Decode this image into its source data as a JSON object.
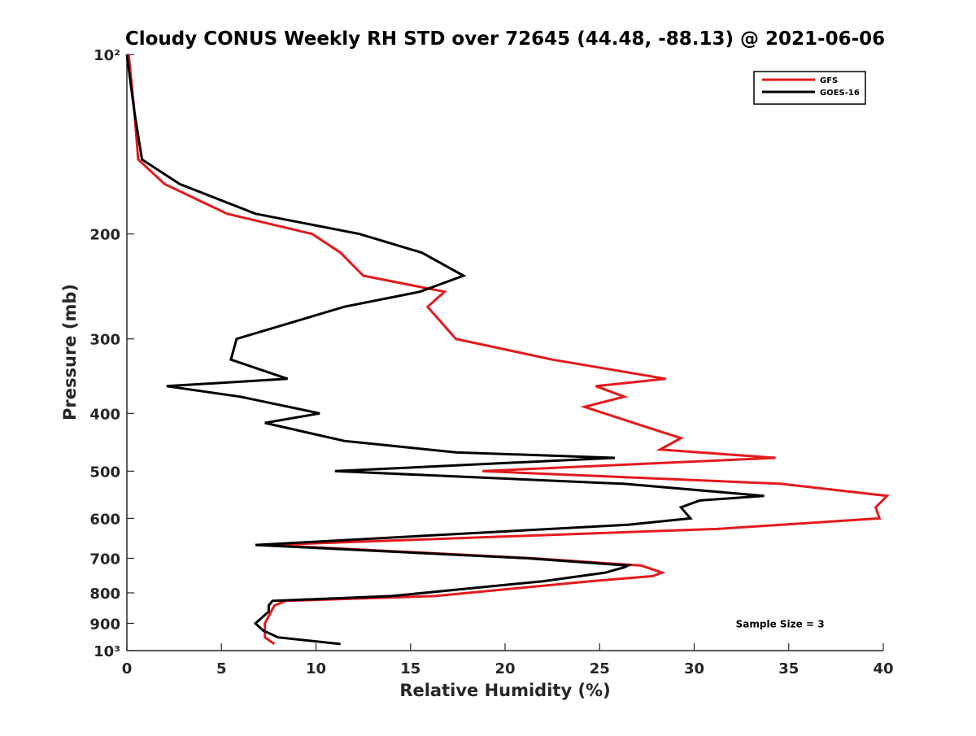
{
  "chart_data": {
    "type": "line",
    "title": "Cloudy CONUS Weekly RH STD over 72645 (44.48, -88.13) @ 2021-06-06",
    "xlabel": "Relative Humidity (%)",
    "ylabel": "Pressure (mb)",
    "xlim": [
      0,
      40
    ],
    "ylim": [
      100,
      1000
    ],
    "y_scale": "log",
    "y_reversed": true,
    "grid": false,
    "legend_position": "top-right",
    "x_ticks": [
      0,
      5,
      10,
      15,
      20,
      25,
      30,
      35,
      40
    ],
    "x_tick_labels": [
      "0",
      "5",
      "10",
      "15",
      "20",
      "25",
      "30",
      "35",
      "40"
    ],
    "y_ticks": [
      100,
      200,
      300,
      400,
      500,
      600,
      700,
      800,
      900,
      1000
    ],
    "y_tick_labels": [
      "10²",
      "200",
      "300",
      "400",
      "500",
      "600",
      "700",
      "800",
      "900",
      "10³"
    ],
    "series": [
      {
        "name": "GFS",
        "color": "#e41a1c",
        "points": [
          [
            0.1,
            100
          ],
          [
            0.4,
            125
          ],
          [
            0.6,
            150
          ],
          [
            2.0,
            165
          ],
          [
            5.3,
            185
          ],
          [
            9.8,
            200
          ],
          [
            11.3,
            215
          ],
          [
            12.5,
            235
          ],
          [
            16.8,
            250
          ],
          [
            15.9,
            265
          ],
          [
            17.4,
            300
          ],
          [
            22.5,
            325
          ],
          [
            28.5,
            350
          ],
          [
            24.8,
            360
          ],
          [
            26.3,
            375
          ],
          [
            24.2,
            390
          ],
          [
            27.8,
            425
          ],
          [
            29.3,
            440
          ],
          [
            28.2,
            460
          ],
          [
            34.3,
            475
          ],
          [
            18.8,
            500
          ],
          [
            34.6,
            525
          ],
          [
            40.2,
            550
          ],
          [
            39.6,
            575
          ],
          [
            39.8,
            600
          ],
          [
            31.2,
            625
          ],
          [
            7.5,
            665
          ],
          [
            21.5,
            700
          ],
          [
            27.2,
            720
          ],
          [
            28.3,
            740
          ],
          [
            27.8,
            750
          ],
          [
            24.5,
            765
          ],
          [
            16.3,
            810
          ],
          [
            8.4,
            825
          ],
          [
            7.8,
            840
          ],
          [
            7.3,
            900
          ],
          [
            7.3,
            950
          ],
          [
            7.8,
            975
          ]
        ]
      },
      {
        "name": "GOES-16",
        "color": "#000000",
        "points": [
          [
            0.0,
            100
          ],
          [
            0.4,
            125
          ],
          [
            0.8,
            150
          ],
          [
            2.8,
            165
          ],
          [
            6.8,
            185
          ],
          [
            12.3,
            200
          ],
          [
            15.6,
            215
          ],
          [
            17.8,
            235
          ],
          [
            15.5,
            250
          ],
          [
            11.5,
            265
          ],
          [
            5.8,
            300
          ],
          [
            5.5,
            325
          ],
          [
            8.5,
            350
          ],
          [
            2.1,
            360
          ],
          [
            6.0,
            375
          ],
          [
            10.2,
            400
          ],
          [
            7.3,
            415
          ],
          [
            11.5,
            445
          ],
          [
            17.4,
            465
          ],
          [
            25.8,
            475
          ],
          [
            11.0,
            500
          ],
          [
            26.3,
            525
          ],
          [
            33.7,
            550
          ],
          [
            30.3,
            560
          ],
          [
            29.3,
            575
          ],
          [
            29.8,
            600
          ],
          [
            26.5,
            615
          ],
          [
            6.8,
            665
          ],
          [
            21.2,
            700
          ],
          [
            26.5,
            720
          ],
          [
            26.3,
            725
          ],
          [
            25.3,
            740
          ],
          [
            22.0,
            765
          ],
          [
            14.0,
            810
          ],
          [
            7.7,
            825
          ],
          [
            7.5,
            840
          ],
          [
            7.5,
            860
          ],
          [
            6.8,
            900
          ],
          [
            7.2,
            925
          ],
          [
            8.0,
            950
          ],
          [
            11.3,
            975
          ]
        ]
      }
    ],
    "annotations": [
      {
        "text": "Sample Size = 3",
        "x": 32.2,
        "y": 900
      }
    ]
  }
}
